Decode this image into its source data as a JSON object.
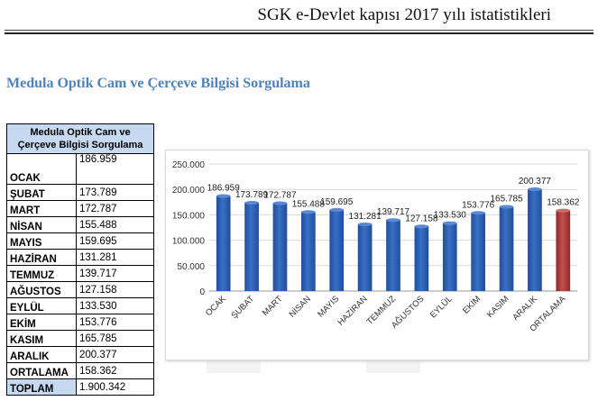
{
  "header": {
    "title": "SGK e-Devlet kapısı 2017 yılı istatistikleri"
  },
  "section": {
    "title": "Medula Optik Cam ve Çerçeve Bilgisi Sorgulama"
  },
  "table": {
    "header_line1": "Medula Optik Cam ve",
    "header_line2": "Çerçeve Bilgisi Sorgulama",
    "rows": [
      {
        "label": "OCAK",
        "value": "186.959"
      },
      {
        "label": "ŞUBAT",
        "value": "173.789"
      },
      {
        "label": "MART",
        "value": "172.787"
      },
      {
        "label": "NİSAN",
        "value": "155.488"
      },
      {
        "label": "MAYIS",
        "value": "159.695"
      },
      {
        "label": "HAZİRAN",
        "value": "131.281"
      },
      {
        "label": "TEMMUZ",
        "value": "139.717"
      },
      {
        "label": "AĞUSTOS",
        "value": "127.158"
      },
      {
        "label": "EYLÜL",
        "value": "133.530"
      },
      {
        "label": "EKİM",
        "value": "153.776"
      },
      {
        "label": "KASIM",
        "value": "165.785"
      },
      {
        "label": "ARALIK",
        "value": "200.377"
      },
      {
        "label": "ORTALAMA",
        "value": "158.362"
      }
    ],
    "total_label": "TOPLAM",
    "total_value": "1.900.342"
  },
  "chart_data": {
    "type": "bar",
    "categories": [
      "OCAK",
      "ŞUBAT",
      "MART",
      "NİSAN",
      "MAYIS",
      "HAZİRAN",
      "TEMMUZ",
      "AĞUSTOS",
      "EYLÜL",
      "EKİM",
      "KASIM",
      "ARALIK",
      "ORTALAMA"
    ],
    "values": [
      186959,
      173789,
      172787,
      155488,
      159695,
      131281,
      139717,
      127158,
      133530,
      153776,
      165785,
      200377,
      158362
    ],
    "value_labels": [
      "186.959",
      "173.789",
      "172.787",
      "155.488",
      "159.695",
      "131.281",
      "139.717",
      "127.158",
      "133.530",
      "153.776",
      "165.785",
      "200.377",
      "158.362"
    ],
    "ylim": [
      0,
      250000
    ],
    "y_ticks": [
      0,
      50000,
      100000,
      150000,
      200000,
      250000
    ],
    "y_tick_labels": [
      "0",
      "50.000",
      "100.000",
      "150.000",
      "200.000",
      "250.000"
    ],
    "colors": {
      "bar": "#3a6fc4",
      "average_bar": "#c0504d",
      "grid": "#d9d9d9"
    },
    "highlight_category": "ORTALAMA",
    "grid": true,
    "legend": "none"
  }
}
